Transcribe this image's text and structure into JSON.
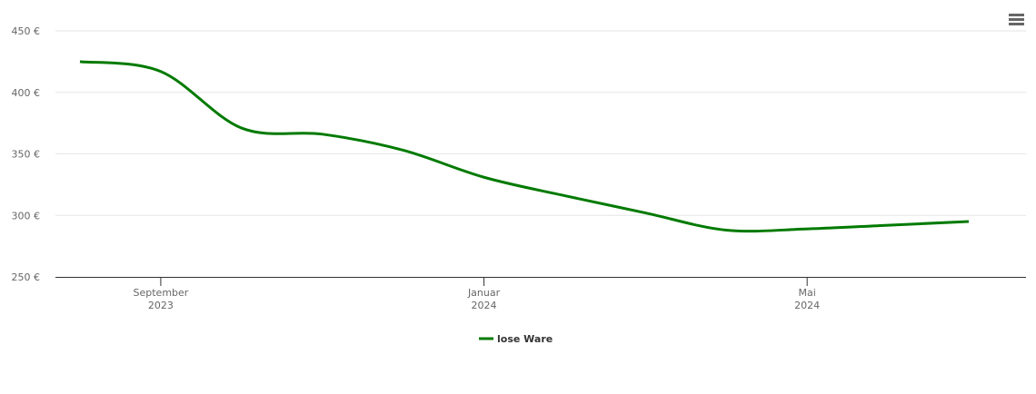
{
  "chart_data": {
    "type": "line",
    "x": [
      "2023-08",
      "2023-09",
      "2023-10",
      "2023-11",
      "2023-12",
      "2024-01",
      "2024-02",
      "2024-03",
      "2024-04",
      "2024-05",
      "2024-06",
      "2024-07"
    ],
    "series": [
      {
        "name": "lose Ware",
        "color": "#007a00",
        "values": [
          425,
          417,
          371,
          366,
          353,
          331,
          316,
          302,
          288,
          289,
          292,
          295
        ]
      }
    ],
    "xlim": [
      "2023-08",
      "2024-07"
    ],
    "xticks": [
      {
        "value": "2023-09",
        "label": "September 2023"
      },
      {
        "value": "2024-01",
        "label": "Januar 2024"
      },
      {
        "value": "2024-05",
        "label": "Mai 2024"
      }
    ],
    "ylim": [
      250,
      450
    ],
    "yticks": [
      {
        "value": 250,
        "label": "250 €"
      },
      {
        "value": 300,
        "label": "300 €"
      },
      {
        "value": 350,
        "label": "350 €"
      },
      {
        "value": 400,
        "label": "400 €"
      },
      {
        "value": 450,
        "label": "450 €"
      }
    ],
    "grid": true,
    "legend": "bottom"
  }
}
